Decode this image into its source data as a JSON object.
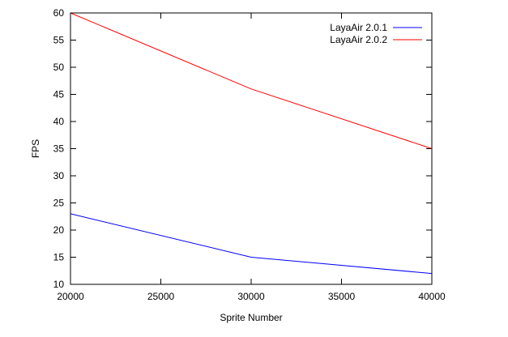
{
  "chart_data": {
    "type": "line",
    "xlabel": "Sprite Number",
    "ylabel": "FPS",
    "xlim": [
      20000,
      40000
    ],
    "ylim": [
      10,
      60
    ],
    "xticks": [
      20000,
      25000,
      30000,
      35000,
      40000
    ],
    "yticks": [
      10,
      15,
      20,
      25,
      30,
      35,
      40,
      45,
      50,
      55,
      60
    ],
    "legend_position": "top-right",
    "grid": false,
    "series": [
      {
        "name": "LayaAir 2.0.1",
        "color": "#0000ff",
        "x": [
          20000,
          30000,
          40000
        ],
        "y": [
          23,
          15,
          12
        ]
      },
      {
        "name": "LayaAir 2.0.2",
        "color": "#ff0000",
        "x": [
          20000,
          30000,
          40000
        ],
        "y": [
          60,
          46,
          35
        ]
      }
    ]
  }
}
